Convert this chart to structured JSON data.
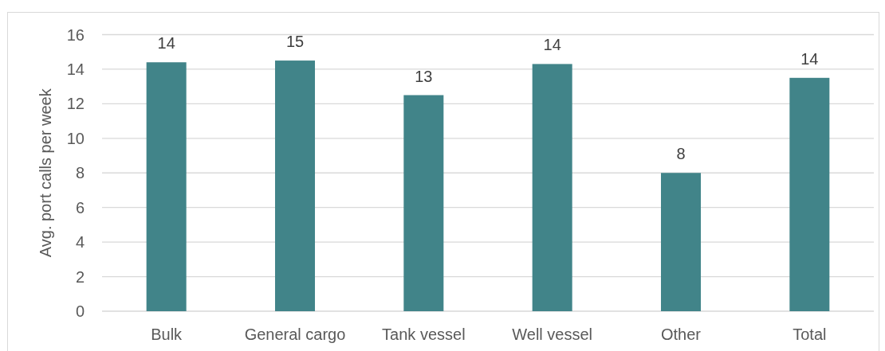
{
  "chart_data": {
    "type": "bar",
    "ylabel": "Avg. port calls per week",
    "categories": [
      "Bulk",
      "General cargo",
      "Tank vessel",
      "Well vessel",
      "Other",
      "Total"
    ],
    "values": [
      14.4,
      14.5,
      12.5,
      14.3,
      8.0,
      13.5
    ],
    "value_labels": [
      "14",
      "15",
      "13",
      "14",
      "8",
      "14"
    ],
    "color": "#418489",
    "ylim": [
      0,
      16
    ],
    "yticks": [
      0,
      2,
      4,
      6,
      8,
      10,
      12,
      14,
      16
    ],
    "grid": "y"
  }
}
